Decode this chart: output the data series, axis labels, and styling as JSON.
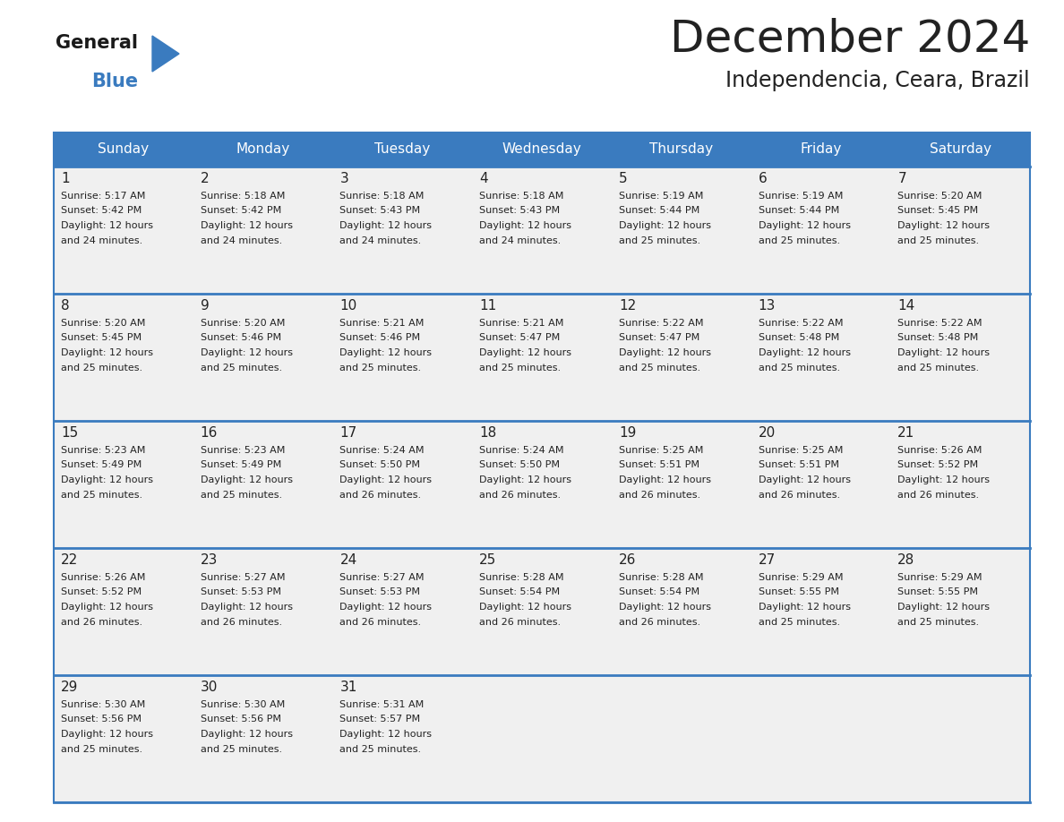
{
  "title": "December 2024",
  "subtitle": "Independencia, Ceara, Brazil",
  "header_color": "#3a7bbf",
  "header_text_color": "#ffffff",
  "background_color": "#ffffff",
  "cell_bg_color": "#f0f0f0",
  "border_color": "#3a7bbf",
  "text_color": "#222222",
  "days_of_week": [
    "Sunday",
    "Monday",
    "Tuesday",
    "Wednesday",
    "Thursday",
    "Friday",
    "Saturday"
  ],
  "weeks": [
    [
      {
        "day": "1",
        "sunrise": "5:17 AM",
        "sunset": "5:42 PM",
        "dl1": "Daylight: 12 hours",
        "dl2": "and 24 minutes."
      },
      {
        "day": "2",
        "sunrise": "5:18 AM",
        "sunset": "5:42 PM",
        "dl1": "Daylight: 12 hours",
        "dl2": "and 24 minutes."
      },
      {
        "day": "3",
        "sunrise": "5:18 AM",
        "sunset": "5:43 PM",
        "dl1": "Daylight: 12 hours",
        "dl2": "and 24 minutes."
      },
      {
        "day": "4",
        "sunrise": "5:18 AM",
        "sunset": "5:43 PM",
        "dl1": "Daylight: 12 hours",
        "dl2": "and 24 minutes."
      },
      {
        "day": "5",
        "sunrise": "5:19 AM",
        "sunset": "5:44 PM",
        "dl1": "Daylight: 12 hours",
        "dl2": "and 25 minutes."
      },
      {
        "day": "6",
        "sunrise": "5:19 AM",
        "sunset": "5:44 PM",
        "dl1": "Daylight: 12 hours",
        "dl2": "and 25 minutes."
      },
      {
        "day": "7",
        "sunrise": "5:20 AM",
        "sunset": "5:45 PM",
        "dl1": "Daylight: 12 hours",
        "dl2": "and 25 minutes."
      }
    ],
    [
      {
        "day": "8",
        "sunrise": "5:20 AM",
        "sunset": "5:45 PM",
        "dl1": "Daylight: 12 hours",
        "dl2": "and 25 minutes."
      },
      {
        "day": "9",
        "sunrise": "5:20 AM",
        "sunset": "5:46 PM",
        "dl1": "Daylight: 12 hours",
        "dl2": "and 25 minutes."
      },
      {
        "day": "10",
        "sunrise": "5:21 AM",
        "sunset": "5:46 PM",
        "dl1": "Daylight: 12 hours",
        "dl2": "and 25 minutes."
      },
      {
        "day": "11",
        "sunrise": "5:21 AM",
        "sunset": "5:47 PM",
        "dl1": "Daylight: 12 hours",
        "dl2": "and 25 minutes."
      },
      {
        "day": "12",
        "sunrise": "5:22 AM",
        "sunset": "5:47 PM",
        "dl1": "Daylight: 12 hours",
        "dl2": "and 25 minutes."
      },
      {
        "day": "13",
        "sunrise": "5:22 AM",
        "sunset": "5:48 PM",
        "dl1": "Daylight: 12 hours",
        "dl2": "and 25 minutes."
      },
      {
        "day": "14",
        "sunrise": "5:22 AM",
        "sunset": "5:48 PM",
        "dl1": "Daylight: 12 hours",
        "dl2": "and 25 minutes."
      }
    ],
    [
      {
        "day": "15",
        "sunrise": "5:23 AM",
        "sunset": "5:49 PM",
        "dl1": "Daylight: 12 hours",
        "dl2": "and 25 minutes."
      },
      {
        "day": "16",
        "sunrise": "5:23 AM",
        "sunset": "5:49 PM",
        "dl1": "Daylight: 12 hours",
        "dl2": "and 25 minutes."
      },
      {
        "day": "17",
        "sunrise": "5:24 AM",
        "sunset": "5:50 PM",
        "dl1": "Daylight: 12 hours",
        "dl2": "and 26 minutes."
      },
      {
        "day": "18",
        "sunrise": "5:24 AM",
        "sunset": "5:50 PM",
        "dl1": "Daylight: 12 hours",
        "dl2": "and 26 minutes."
      },
      {
        "day": "19",
        "sunrise": "5:25 AM",
        "sunset": "5:51 PM",
        "dl1": "Daylight: 12 hours",
        "dl2": "and 26 minutes."
      },
      {
        "day": "20",
        "sunrise": "5:25 AM",
        "sunset": "5:51 PM",
        "dl1": "Daylight: 12 hours",
        "dl2": "and 26 minutes."
      },
      {
        "day": "21",
        "sunrise": "5:26 AM",
        "sunset": "5:52 PM",
        "dl1": "Daylight: 12 hours",
        "dl2": "and 26 minutes."
      }
    ],
    [
      {
        "day": "22",
        "sunrise": "5:26 AM",
        "sunset": "5:52 PM",
        "dl1": "Daylight: 12 hours",
        "dl2": "and 26 minutes."
      },
      {
        "day": "23",
        "sunrise": "5:27 AM",
        "sunset": "5:53 PM",
        "dl1": "Daylight: 12 hours",
        "dl2": "and 26 minutes."
      },
      {
        "day": "24",
        "sunrise": "5:27 AM",
        "sunset": "5:53 PM",
        "dl1": "Daylight: 12 hours",
        "dl2": "and 26 minutes."
      },
      {
        "day": "25",
        "sunrise": "5:28 AM",
        "sunset": "5:54 PM",
        "dl1": "Daylight: 12 hours",
        "dl2": "and 26 minutes."
      },
      {
        "day": "26",
        "sunrise": "5:28 AM",
        "sunset": "5:54 PM",
        "dl1": "Daylight: 12 hours",
        "dl2": "and 26 minutes."
      },
      {
        "day": "27",
        "sunrise": "5:29 AM",
        "sunset": "5:55 PM",
        "dl1": "Daylight: 12 hours",
        "dl2": "and 25 minutes."
      },
      {
        "day": "28",
        "sunrise": "5:29 AM",
        "sunset": "5:55 PM",
        "dl1": "Daylight: 12 hours",
        "dl2": "and 25 minutes."
      }
    ],
    [
      {
        "day": "29",
        "sunrise": "5:30 AM",
        "sunset": "5:56 PM",
        "dl1": "Daylight: 12 hours",
        "dl2": "and 25 minutes."
      },
      {
        "day": "30",
        "sunrise": "5:30 AM",
        "sunset": "5:56 PM",
        "dl1": "Daylight: 12 hours",
        "dl2": "and 25 minutes."
      },
      {
        "day": "31",
        "sunrise": "5:31 AM",
        "sunset": "5:57 PM",
        "dl1": "Daylight: 12 hours",
        "dl2": "and 25 minutes."
      },
      null,
      null,
      null,
      null
    ]
  ],
  "logo_text_general": "General",
  "logo_text_blue": "Blue",
  "logo_color_general": "#1a1a1a",
  "logo_color_blue": "#3a7bbf",
  "logo_triangle_color": "#3a7bbf",
  "title_fontsize": 36,
  "subtitle_fontsize": 17,
  "header_fontsize": 11,
  "day_num_fontsize": 11,
  "cell_text_fontsize": 8
}
